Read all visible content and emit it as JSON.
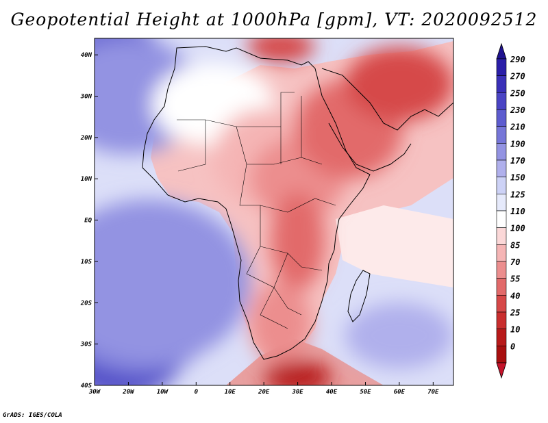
{
  "title": "Geopotential Height at 1000hPa [gpm], VT: 2020092512",
  "credit": "GrADS: IGES/COLA",
  "map": {
    "projection": "latlon",
    "lon_range": [
      -30,
      76
    ],
    "lat_range": [
      -40,
      44
    ],
    "lon_ticks": [
      {
        "value": -30,
        "label": "30W"
      },
      {
        "value": -20,
        "label": "20W"
      },
      {
        "value": -10,
        "label": "10W"
      },
      {
        "value": 0,
        "label": "0"
      },
      {
        "value": 10,
        "label": "10E"
      },
      {
        "value": 20,
        "label": "20E"
      },
      {
        "value": 30,
        "label": "30E"
      },
      {
        "value": 40,
        "label": "40E"
      },
      {
        "value": 50,
        "label": "50E"
      },
      {
        "value": 60,
        "label": "60E"
      },
      {
        "value": 70,
        "label": "70E"
      }
    ],
    "lat_ticks": [
      {
        "value": 40,
        "label": "40N"
      },
      {
        "value": 30,
        "label": "30N"
      },
      {
        "value": 20,
        "label": "20N"
      },
      {
        "value": 10,
        "label": "10N"
      },
      {
        "value": 0,
        "label": "EQ"
      },
      {
        "value": -10,
        "label": "10S"
      },
      {
        "value": -20,
        "label": "20S"
      },
      {
        "value": -30,
        "label": "30S"
      },
      {
        "value": -40,
        "label": "40S"
      }
    ]
  },
  "colorbar": {
    "levels": [
      "290",
      "270",
      "250",
      "230",
      "210",
      "190",
      "170",
      "150",
      "125",
      "110",
      "100",
      "85",
      "70",
      "55",
      "40",
      "25",
      "10",
      "0"
    ],
    "colors": [
      "#2a1ea8",
      "#3a30b8",
      "#4a44c4",
      "#5d5ccf",
      "#7676d8",
      "#9393e2",
      "#b0b0ec",
      "#cdd2f6",
      "#e6eafb",
      "#ffffff",
      "#fbd8d8",
      "#f5b5b5",
      "#ec8e8e",
      "#e26a6a",
      "#d64848",
      "#c92e2e",
      "#b81a1a",
      "#a80f0f"
    ],
    "top_color": "#1f128f",
    "bottom_color": "#c4132a"
  },
  "field_blobs": [
    {
      "lon": -24,
      "lat": -31,
      "rx": 13,
      "ry": 9,
      "color": "#2a1ea8"
    },
    {
      "lon": -22,
      "lat": -29,
      "rx": 20,
      "ry": 14,
      "color": "#4a44c4"
    },
    {
      "lon": -18,
      "lat": -20,
      "rx": 26,
      "ry": 18,
      "color": "#7676d8"
    },
    {
      "lon": -14,
      "lat": -15,
      "rx": 30,
      "ry": 20,
      "color": "#9393e2"
    },
    {
      "lon": -26,
      "lat": 40,
      "rx": 10,
      "ry": 7,
      "color": "#2a1ea8"
    },
    {
      "lon": -24,
      "lat": 36,
      "rx": 16,
      "ry": 12,
      "color": "#5d5ccf"
    },
    {
      "lon": -20,
      "lat": 30,
      "rx": 22,
      "ry": 14,
      "color": "#9393e2"
    },
    {
      "lon": 58,
      "lat": -28,
      "rx": 10,
      "ry": 5,
      "color": "#7676d8"
    },
    {
      "lon": 60,
      "lat": -28,
      "rx": 16,
      "ry": 8,
      "color": "#b0b0ec"
    },
    {
      "lon": 5,
      "lat": 28,
      "rx": 18,
      "ry": 10,
      "color": "#ffffff"
    },
    {
      "lon": 20,
      "lat": 15,
      "rx": 15,
      "ry": 12,
      "color": "#f5b5b5"
    },
    {
      "lon": 30,
      "lat": 10,
      "rx": 14,
      "ry": 10,
      "color": "#ec8e8e"
    },
    {
      "lon": 45,
      "lat": 22,
      "rx": 16,
      "ry": 12,
      "color": "#e26a6a"
    },
    {
      "lon": 60,
      "lat": 33,
      "rx": 16,
      "ry": 9,
      "color": "#d64848"
    },
    {
      "lon": 30,
      "lat": -5,
      "rx": 8,
      "ry": 12,
      "color": "#e26a6a"
    },
    {
      "lon": 25,
      "lat": -25,
      "rx": 9,
      "ry": 10,
      "color": "#ec8e8e"
    },
    {
      "lon": 30,
      "lat": -38,
      "rx": 10,
      "ry": 4,
      "color": "#b81a1a"
    },
    {
      "lon": 25,
      "lat": 42,
      "rx": 10,
      "ry": 4,
      "color": "#d64848"
    }
  ]
}
